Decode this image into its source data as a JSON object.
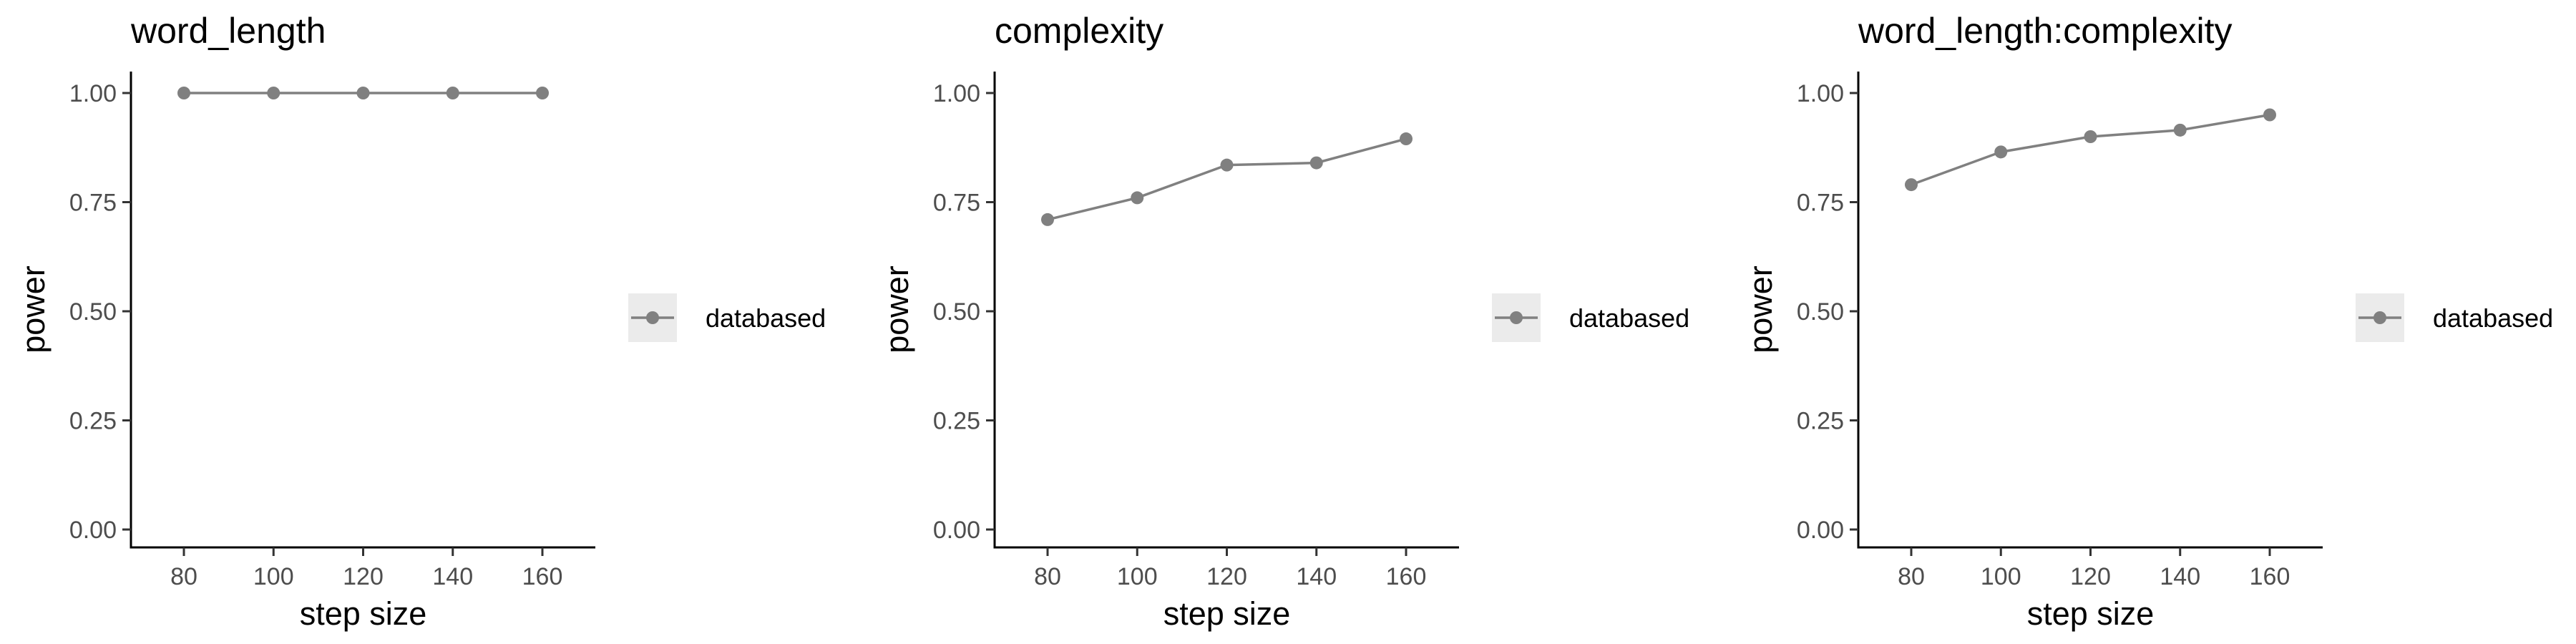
{
  "chart_data": [
    {
      "type": "line",
      "title": "word_length",
      "xlabel": "step size",
      "ylabel": "power",
      "x": [
        80,
        100,
        120,
        140,
        160
      ],
      "xticks": [
        "80",
        "100",
        "120",
        "140",
        "160"
      ],
      "yticks": [
        "0.00",
        "0.25",
        "0.50",
        "0.75",
        "1.00"
      ],
      "xlim": [
        70,
        170
      ],
      "ylim": [
        0,
        1
      ],
      "grid": false,
      "legend_position": "right",
      "series": [
        {
          "name": "databased",
          "values": [
            1.0,
            1.0,
            1.0,
            1.0,
            1.0
          ]
        }
      ]
    },
    {
      "type": "line",
      "title": "complexity",
      "xlabel": "step size",
      "ylabel": "power",
      "x": [
        80,
        100,
        120,
        140,
        160
      ],
      "xticks": [
        "80",
        "100",
        "120",
        "140",
        "160"
      ],
      "yticks": [
        "0.00",
        "0.25",
        "0.50",
        "0.75",
        "1.00"
      ],
      "xlim": [
        70,
        170
      ],
      "ylim": [
        0,
        1
      ],
      "grid": false,
      "legend_position": "right",
      "series": [
        {
          "name": "databased",
          "values": [
            0.71,
            0.76,
            0.835,
            0.84,
            0.895
          ]
        }
      ]
    },
    {
      "type": "line",
      "title": "word_length:complexity",
      "xlabel": "step size",
      "ylabel": "power",
      "x": [
        80,
        100,
        120,
        140,
        160
      ],
      "xticks": [
        "80",
        "100",
        "120",
        "140",
        "160"
      ],
      "yticks": [
        "0.00",
        "0.25",
        "0.50",
        "0.75",
        "1.00"
      ],
      "xlim": [
        70,
        170
      ],
      "ylim": [
        0,
        1
      ],
      "grid": false,
      "legend_position": "right",
      "series": [
        {
          "name": "databased",
          "values": [
            0.79,
            0.865,
            0.9,
            0.915,
            0.95
          ]
        }
      ]
    }
  ],
  "colors": {
    "series": "#808080",
    "axis": "#000000",
    "tick_text": "#4d4d4d",
    "legend_key_bg": "#ebebeb"
  }
}
